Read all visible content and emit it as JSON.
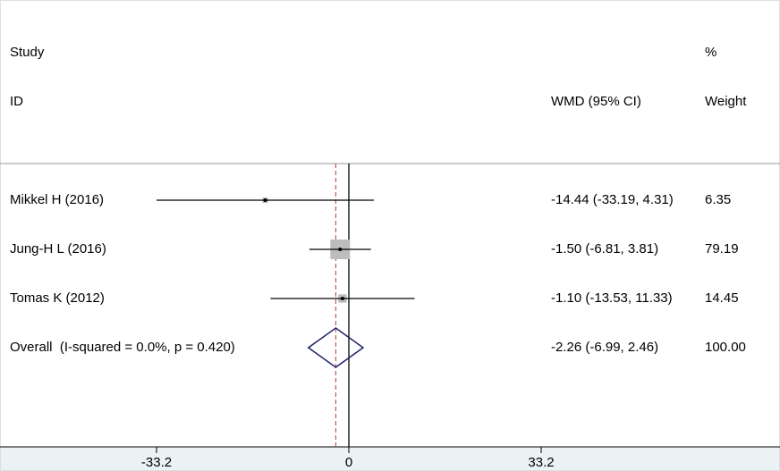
{
  "chart_data": {
    "type": "forest",
    "headers": {
      "study": "Study",
      "id": "ID",
      "effect": "WMD (95% CI)",
      "weight_top": "%",
      "weight": "Weight"
    },
    "studies": [
      {
        "name": "Mikkel H (2016)",
        "estimate": -14.44,
        "ci": [
          -33.19,
          4.31
        ],
        "ci_label": "-14.44 (-33.19, 4.31)",
        "weight": 6.35
      },
      {
        "name": "Jung-H L (2016)",
        "estimate": -1.5,
        "ci": [
          -6.81,
          3.81
        ],
        "ci_label": "-1.50 (-6.81, 3.81)",
        "weight": 79.19
      },
      {
        "name": "Tomas K (2012)",
        "estimate": -1.1,
        "ci": [
          -13.53,
          11.33
        ],
        "ci_label": "-1.10 (-13.53, 11.33)",
        "weight": 14.45
      }
    ],
    "overall": {
      "name": "Overall  (I-squared = 0.0%, p = 0.420)",
      "estimate": -2.26,
      "ci": [
        -6.99,
        2.46
      ],
      "ci_label": "-2.26 (-6.99, 2.46)",
      "weight": {
        "value": 100,
        "label": "100.00"
      }
    },
    "xlim": [
      -33.2,
      33.2
    ],
    "xticks": [
      -33.2,
      0,
      33.2
    ]
  }
}
